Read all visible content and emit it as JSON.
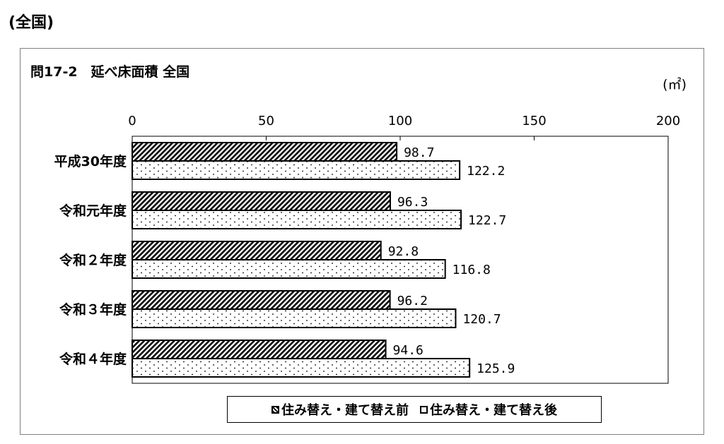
{
  "page": {
    "heading": "(全国)"
  },
  "chart_data": {
    "type": "bar",
    "orientation": "horizontal",
    "title": "問17-2　延べ床面積 全国",
    "unit": "(㎡)",
    "categories": [
      "平成30年度",
      "令和元年度",
      "令和２年度",
      "令和３年度",
      "令和４年度"
    ],
    "series": [
      {
        "name": "住み替え・建て替え前",
        "values": [
          98.7,
          96.3,
          92.8,
          96.2,
          94.6
        ],
        "labels": [
          "98.7",
          "96.3",
          "92.8",
          "96.2",
          "94.6"
        ],
        "pattern": "diagonal-hatch"
      },
      {
        "name": "住み替え・建て替え後",
        "values": [
          122.2,
          122.7,
          116.8,
          120.7,
          125.9
        ],
        "labels": [
          "122.2",
          "122.7",
          "116.8",
          "120.7",
          "125.9"
        ],
        "pattern": "dots"
      }
    ],
    "xlim": [
      0,
      200
    ],
    "ticks": [
      "0",
      "50",
      "100",
      "150",
      "200"
    ],
    "legend": "bottom",
    "grid": false
  }
}
